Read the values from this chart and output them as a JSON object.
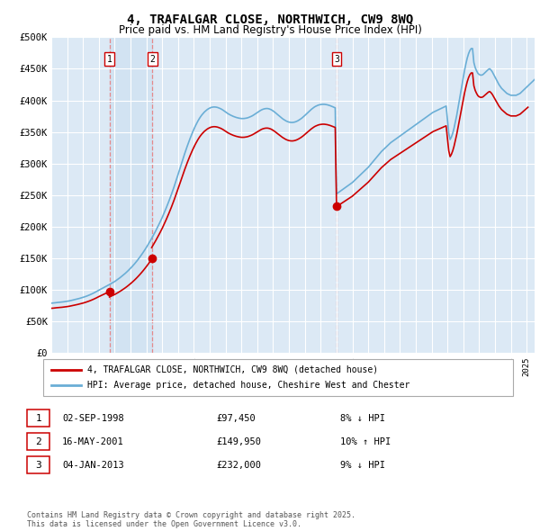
{
  "title": "4, TRAFALGAR CLOSE, NORTHWICH, CW9 8WQ",
  "subtitle": "Price paid vs. HM Land Registry's House Price Index (HPI)",
  "plot_bg_color": "#dce9f5",
  "ylim": [
    0,
    500000
  ],
  "yticks": [
    0,
    50000,
    100000,
    150000,
    200000,
    250000,
    300000,
    350000,
    400000,
    450000,
    500000
  ],
  "ytick_labels": [
    "£0",
    "£50K",
    "£100K",
    "£150K",
    "£200K",
    "£250K",
    "£300K",
    "£350K",
    "£400K",
    "£450K",
    "£500K"
  ],
  "sale_dates": [
    1998.67,
    2001.37,
    2013.01
  ],
  "sale_prices": [
    97450,
    149950,
    232000
  ],
  "sale_labels": [
    "1",
    "2",
    "3"
  ],
  "sale_annotations": [
    {
      "label": "1",
      "date": "02-SEP-1998",
      "price": "£97,450",
      "hpi": "8% ↓ HPI"
    },
    {
      "label": "2",
      "date": "16-MAY-2001",
      "price": "£149,950",
      "hpi": "10% ↑ HPI"
    },
    {
      "label": "3",
      "date": "04-JAN-2013",
      "price": "£232,000",
      "hpi": "9% ↓ HPI"
    }
  ],
  "hpi_line_color": "#6aaed6",
  "sale_line_color": "#cc0000",
  "dashed_line_color": "#e88080",
  "legend_line1": "4, TRAFALGAR CLOSE, NORTHWICH, CW9 8WQ (detached house)",
  "legend_line2": "HPI: Average price, detached house, Cheshire West and Chester",
  "footer": "Contains HM Land Registry data © Crown copyright and database right 2025.\nThis data is licensed under the Open Government Licence v3.0.",
  "hpi_monthly": [
    79000,
    79200,
    79400,
    79700,
    80000,
    80200,
    80400,
    80600,
    80800,
    81100,
    81400,
    81700,
    82000,
    82400,
    82800,
    83300,
    83800,
    84300,
    84800,
    85300,
    85800,
    86400,
    87000,
    87600,
    88200,
    88900,
    89600,
    90400,
    91200,
    92100,
    93000,
    94000,
    95000,
    96100,
    97200,
    98400,
    99600,
    100700,
    101800,
    102900,
    104000,
    105100,
    106200,
    107300,
    108500,
    109700,
    110900,
    112100,
    113300,
    114800,
    116200,
    117800,
    119300,
    121000,
    122700,
    124400,
    126200,
    128100,
    130100,
    132200,
    134300,
    136500,
    138800,
    141200,
    143700,
    146300,
    149000,
    151800,
    154700,
    157700,
    160800,
    164000,
    167300,
    170700,
    174200,
    177800,
    181500,
    185300,
    189200,
    193200,
    197300,
    201500,
    205800,
    210200,
    214700,
    219600,
    224500,
    229600,
    234800,
    240200,
    245700,
    251400,
    257300,
    263400,
    269700,
    276200,
    282800,
    289400,
    296000,
    302600,
    309200,
    315600,
    321800,
    327800,
    333600,
    339200,
    344600,
    349600,
    354400,
    359000,
    363200,
    367200,
    370800,
    374000,
    376900,
    379400,
    381700,
    383600,
    385300,
    386700,
    387800,
    388700,
    389200,
    389500,
    389500,
    389200,
    388700,
    387900,
    387000,
    385900,
    384600,
    383100,
    381500,
    380100,
    378700,
    377500,
    376400,
    375400,
    374500,
    373700,
    373000,
    372400,
    371900,
    371500,
    371200,
    371200,
    371300,
    371600,
    372000,
    372600,
    373400,
    374300,
    375300,
    376500,
    377900,
    379300,
    380800,
    382200,
    383500,
    384700,
    385700,
    386400,
    386900,
    387100,
    387000,
    386500,
    385700,
    384600,
    383200,
    381700,
    380000,
    378200,
    376400,
    374600,
    372900,
    371200,
    369700,
    368400,
    367200,
    366300,
    365600,
    365200,
    365000,
    365100,
    365500,
    366100,
    367000,
    368100,
    369400,
    370800,
    372400,
    374200,
    376100,
    378100,
    380100,
    382100,
    384100,
    385900,
    387600,
    389100,
    390400,
    391400,
    392300,
    393000,
    393400,
    393700,
    393800,
    393700,
    393400,
    393000,
    392400,
    391700,
    390900,
    390000,
    389100,
    388200,
    252000,
    253500,
    255000,
    256500,
    258000,
    259500,
    261000,
    262500,
    264000,
    265500,
    267000,
    268500,
    270000,
    272000,
    274000,
    276000,
    278000,
    280000,
    282000,
    284000,
    286000,
    288000,
    290000,
    292000,
    294000,
    296500,
    299000,
    301500,
    304000,
    306500,
    309000,
    311500,
    314000,
    316500,
    319000,
    321000,
    323000,
    325000,
    327000,
    329000,
    331000,
    333000,
    334500,
    336000,
    337500,
    339000,
    340500,
    342000,
    343500,
    345000,
    346500,
    348000,
    349500,
    351000,
    352500,
    354000,
    355500,
    357000,
    358500,
    360000,
    361500,
    363000,
    364500,
    366000,
    367500,
    369000,
    370500,
    372000,
    373500,
    375000,
    376500,
    378000,
    379500,
    381000,
    382000,
    383000,
    384000,
    385000,
    386000,
    387000,
    388000,
    389000,
    390000,
    391000,
    370000,
    348000,
    338000,
    342000,
    348000,
    356000,
    366000,
    376000,
    388000,
    400000,
    412000,
    424000,
    436000,
    448000,
    458000,
    467000,
    474000,
    479000,
    482000,
    482000,
    460000,
    452000,
    447000,
    443000,
    441000,
    440000,
    440000,
    441000,
    443000,
    445000,
    447000,
    449000,
    450000,
    448000,
    445000,
    441000,
    437000,
    433000,
    429000,
    425000,
    422000,
    419000,
    417000,
    415000,
    413000,
    411000,
    410000,
    409000,
    408000,
    408000,
    408000,
    408000,
    408000,
    409000,
    410000,
    411000,
    413000,
    415000,
    417000,
    419000,
    421000,
    423000,
    425000,
    427000,
    429000,
    431000,
    433000,
    435000,
    437000
  ]
}
